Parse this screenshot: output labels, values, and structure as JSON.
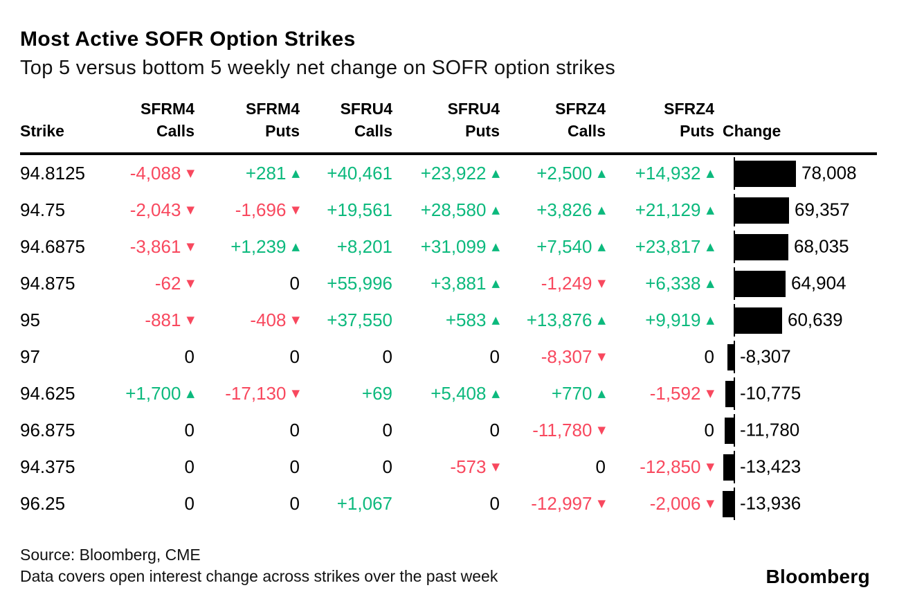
{
  "header": {
    "title": "Most Active SOFR Option Strikes",
    "subtitle": "Top 5 versus bottom 5 weekly net change on SOFR option strikes"
  },
  "footer": {
    "source": "Source: Bloomberg, CME",
    "note": "Data covers open interest change across strikes over the past week",
    "brand": "Bloomberg"
  },
  "colors": {
    "positive": "#0CB97D",
    "negative": "#F8485E",
    "bar": "#000000",
    "text": "#000000"
  },
  "chart_data": {
    "type": "table",
    "title": "Most Active SOFR Option Strikes",
    "subtitle": "Top 5 versus bottom 5 weekly net change on SOFR option strikes",
    "bar_column": "Change",
    "legend": "none",
    "columns": [
      {
        "line1": "",
        "line2": "Strike"
      },
      {
        "line1": "SFRM4",
        "line2": "Calls"
      },
      {
        "line1": "SFRM4",
        "line2": "Puts"
      },
      {
        "line1": "SFRU4",
        "line2": "Calls"
      },
      {
        "line1": "SFRU4",
        "line2": "Puts"
      },
      {
        "line1": "SFRZ4",
        "line2": "Calls"
      },
      {
        "line1": "SFRZ4",
        "line2": "Puts"
      },
      {
        "line1": "",
        "line2": "Change"
      }
    ],
    "rows": [
      {
        "strike": "94.8125",
        "cells": [
          {
            "t": "-4,088",
            "d": "down"
          },
          {
            "t": "+281",
            "d": "up"
          },
          {
            "t": "+40,461",
            "d": "pos"
          },
          {
            "t": "+23,922",
            "d": "up"
          },
          {
            "t": "+2,500",
            "d": "up"
          },
          {
            "t": "+14,932",
            "d": "up"
          }
        ],
        "change": 78008,
        "change_label": "78,008"
      },
      {
        "strike": "94.75",
        "cells": [
          {
            "t": "-2,043",
            "d": "down"
          },
          {
            "t": "-1,696",
            "d": "down"
          },
          {
            "t": "+19,561",
            "d": "pos"
          },
          {
            "t": "+28,580",
            "d": "up"
          },
          {
            "t": "+3,826",
            "d": "up"
          },
          {
            "t": "+21,129",
            "d": "up"
          }
        ],
        "change": 69357,
        "change_label": "69,357"
      },
      {
        "strike": "94.6875",
        "cells": [
          {
            "t": "-3,861",
            "d": "down"
          },
          {
            "t": "+1,239",
            "d": "up"
          },
          {
            "t": "+8,201",
            "d": "pos"
          },
          {
            "t": "+31,099",
            "d": "up"
          },
          {
            "t": "+7,540",
            "d": "up"
          },
          {
            "t": "+23,817",
            "d": "up"
          }
        ],
        "change": 68035,
        "change_label": "68,035"
      },
      {
        "strike": "94.875",
        "cells": [
          {
            "t": "-62",
            "d": "down"
          },
          {
            "t": "0",
            "d": "zero"
          },
          {
            "t": "+55,996",
            "d": "pos"
          },
          {
            "t": "+3,881",
            "d": "up"
          },
          {
            "t": "-1,249",
            "d": "down"
          },
          {
            "t": "+6,338",
            "d": "up"
          }
        ],
        "change": 64904,
        "change_label": "64,904"
      },
      {
        "strike": "95",
        "cells": [
          {
            "t": "-881",
            "d": "down"
          },
          {
            "t": "-408",
            "d": "down"
          },
          {
            "t": "+37,550",
            "d": "pos"
          },
          {
            "t": "+583",
            "d": "up"
          },
          {
            "t": "+13,876",
            "d": "up"
          },
          {
            "t": "+9,919",
            "d": "up"
          }
        ],
        "change": 60639,
        "change_label": "60,639"
      },
      {
        "strike": "97",
        "cells": [
          {
            "t": "0",
            "d": "zero"
          },
          {
            "t": "0",
            "d": "zero"
          },
          {
            "t": "0",
            "d": "zero"
          },
          {
            "t": "0",
            "d": "zero"
          },
          {
            "t": "-8,307",
            "d": "down"
          },
          {
            "t": "0",
            "d": "zero"
          }
        ],
        "change": -8307,
        "change_label": "-8,307"
      },
      {
        "strike": "94.625",
        "cells": [
          {
            "t": "+1,700",
            "d": "up"
          },
          {
            "t": "-17,130",
            "d": "down"
          },
          {
            "t": "+69",
            "d": "pos"
          },
          {
            "t": "+5,408",
            "d": "up"
          },
          {
            "t": "+770",
            "d": "up"
          },
          {
            "t": "-1,592",
            "d": "down"
          }
        ],
        "change": -10775,
        "change_label": "-10,775"
      },
      {
        "strike": "96.875",
        "cells": [
          {
            "t": "0",
            "d": "zero"
          },
          {
            "t": "0",
            "d": "zero"
          },
          {
            "t": "0",
            "d": "zero"
          },
          {
            "t": "0",
            "d": "zero"
          },
          {
            "t": "-11,780",
            "d": "down"
          },
          {
            "t": "0",
            "d": "zero"
          }
        ],
        "change": -11780,
        "change_label": "-11,780"
      },
      {
        "strike": "94.375",
        "cells": [
          {
            "t": "0",
            "d": "zero"
          },
          {
            "t": "0",
            "d": "zero"
          },
          {
            "t": "0",
            "d": "zero"
          },
          {
            "t": "-573",
            "d": "down"
          },
          {
            "t": "0",
            "d": "zero"
          },
          {
            "t": "-12,850",
            "d": "down"
          }
        ],
        "change": -13423,
        "change_label": "-13,423"
      },
      {
        "strike": "96.25",
        "cells": [
          {
            "t": "0",
            "d": "zero"
          },
          {
            "t": "0",
            "d": "zero"
          },
          {
            "t": "+1,067",
            "d": "pos"
          },
          {
            "t": "0",
            "d": "zero"
          },
          {
            "t": "-12,997",
            "d": "down"
          },
          {
            "t": "-2,006",
            "d": "down"
          }
        ],
        "change": -13936,
        "change_label": "-13,936"
      }
    ],
    "icons": {
      "up": "up-arrow-icon",
      "down": "down-arrow-icon"
    }
  }
}
